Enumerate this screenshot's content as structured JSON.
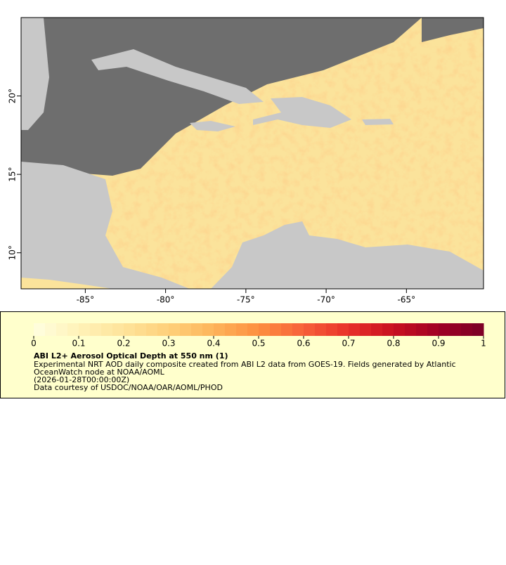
{
  "chart_data": {
    "type": "map",
    "xlim": [
      -89,
      -60.2
    ],
    "ylim": [
      7.7,
      25
    ],
    "xticks": [
      {
        "value": -85,
        "label": "-85°"
      },
      {
        "value": -80,
        "label": "-80°"
      },
      {
        "value": -75,
        "label": "-75°"
      },
      {
        "value": -70,
        "label": "-70°"
      },
      {
        "value": -65,
        "label": "-65°"
      }
    ],
    "yticks": [
      {
        "value": 10,
        "label": "10°"
      },
      {
        "value": 15,
        "label": "15°"
      },
      {
        "value": 20,
        "label": "20°"
      }
    ],
    "colorbar": {
      "lim": [
        0,
        1
      ],
      "ticks": [
        0,
        0.1,
        0.2,
        0.3,
        0.4,
        0.5,
        0.6,
        0.7,
        0.8,
        0.9,
        1
      ],
      "colormap": [
        "#ffffe0",
        "#fff2b8",
        "#fee39a",
        "#fed07a",
        "#fdb45a",
        "#fd8f40",
        "#f7603a",
        "#e8302a",
        "#c8101f",
        "#a00024",
        "#7a0026"
      ]
    },
    "title": "ABI L2+ Aerosol Optical Depth at 550 nm (1)",
    "lines": [
      "Experimental NRT AOD daily composite created from ABI L2 data from GOES-19. Fields generated by Atlantic",
      "OceanWatch node at NOAA/AOML",
      "(2026-01-28T00:00:00Z)",
      "Data courtesy of USDOC/NOAA/OAR/AOML/PHOD"
    ]
  }
}
